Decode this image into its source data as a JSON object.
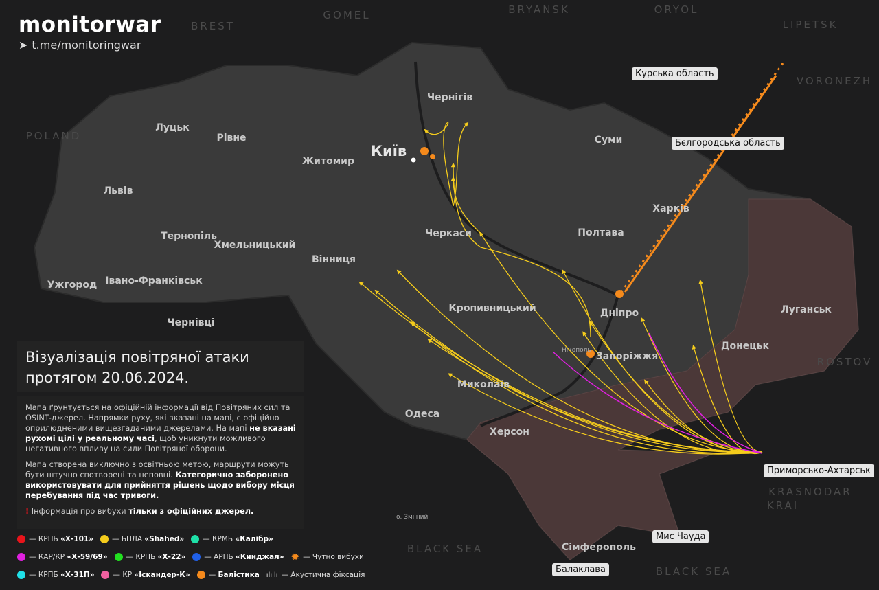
{
  "brand": {
    "name": "monitorwar",
    "telegram": "t.me/monitoringwar",
    "icon": "telegram-icon"
  },
  "title": {
    "line1": "Візуалізація повітряної атаки",
    "line2": "протягом 20.06.2024."
  },
  "info": {
    "p1_a": "Мапа ґрунтується на офіційній інформації від Повітряних сил та OSINT-джерел. Напрямки руху, які вказані на мапі, є офіційно оприлюдненими вищезгаданими джерелами. На мапі ",
    "p1_bold": "не вказані рухомі цілі у реальному часі",
    "p1_b": ", щоб уникнути можливого негативного впливу на сили Повітряної оборони.",
    "p2_a": "Мапа створена виключно з освітньою метою, маршрути можуть бути штучно спотворені та неповні. ",
    "p2_bold": "Категорично заборонено використовувати для прийняття рішень щодо вибору місця перебування під час тривоги.",
    "p3_a": "Інформація про вибухи ",
    "p3_bold": "тільки з офіційних джерел."
  },
  "legend": [
    {
      "label": "— КРПБ ",
      "name": "«Х-101»",
      "color": "#e8141b"
    },
    {
      "label": "— БПЛА ",
      "name": "«Shahed»",
      "color": "#f5cc1c"
    },
    {
      "label": "— КРМБ ",
      "name": "«Калібр»",
      "color": "#1ee0a8"
    },
    {
      "label": "— КАР/КР ",
      "name": "«Х-59/69»",
      "color": "#e020e0"
    },
    {
      "label": "— КРПБ ",
      "name": "«Х-22»",
      "color": "#22e020"
    },
    {
      "label": "— АРПБ ",
      "name": "«Кинджал»",
      "color": "#2060e8"
    },
    {
      "label": "— Чутно вибухи",
      "name": "",
      "icon": "explosion-icon"
    },
    {
      "label": "— КРПБ ",
      "name": "«Х-31П»",
      "color": "#20e0e8"
    },
    {
      "label": "— КР ",
      "name": "«Іскандер-К»",
      "color": "#f060a0"
    },
    {
      "label": "— ",
      "name": "Балістика",
      "color": "#f58a1c"
    },
    {
      "label": "— Акустична фіксація",
      "name": "",
      "icon": "sound-wave-icon"
    }
  ],
  "colors": {
    "background": "#1d1d1e",
    "land": "#3a3a3a",
    "occupied": "#4b3838",
    "shahed": "#f5cc1c",
    "ballistic": "#f58a1c",
    "x59": "#e020e0"
  },
  "cities": [
    "Київ",
    "Чернігів",
    "Суми",
    "Харків",
    "Полтава",
    "Черкаси",
    "Житомир",
    "Рівне",
    "Луцьк",
    "Львів",
    "Тернопіль",
    "Хмельницький",
    "Вінниця",
    "Ужгород",
    "Івано-Франківськ",
    "Чернівці",
    "Кропивницький",
    "Дніпро",
    "Запоріжжя",
    "Донецьк",
    "Луганськ",
    "Миколаїв",
    "Одеса",
    "Херсон",
    "Сімферополь",
    "Нікополь"
  ],
  "foreign": [
    "BRYANSK",
    "ORYOL",
    "LIPETSK",
    "BREST",
    "GOMEL",
    "VORONEZH",
    "POLAND",
    "ROSTOV",
    "KRASNODAR",
    "KRAI",
    "BLACK SEA",
    "BLACK SEA"
  ],
  "pins": [
    "Курська область",
    "Бєлгородська область",
    "Приморсько-Ахтарськ",
    "Мис Чауда",
    "Балаклава"
  ],
  "island": "о. Зміїний"
}
